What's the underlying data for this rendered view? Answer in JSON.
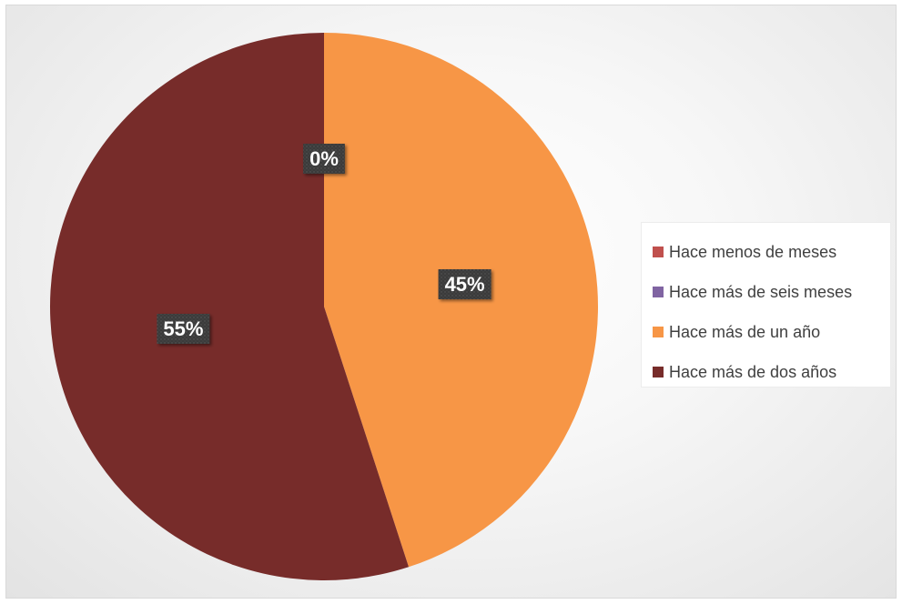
{
  "chart_data": {
    "type": "pie",
    "title": "",
    "legend_position": "right",
    "slices": [
      {
        "name": "Hace menos de meses",
        "value": 0,
        "label": "",
        "color": "#c0504d"
      },
      {
        "name": "Hace más de seis meses",
        "value": 0,
        "label": "0%",
        "color": "#8064a2"
      },
      {
        "name": "Hace más de un año",
        "value": 45,
        "label": "45%",
        "color": "#f79646"
      },
      {
        "name": "Hace más de dos años",
        "value": 55,
        "label": "55%",
        "color": "#772c2a"
      }
    ]
  }
}
